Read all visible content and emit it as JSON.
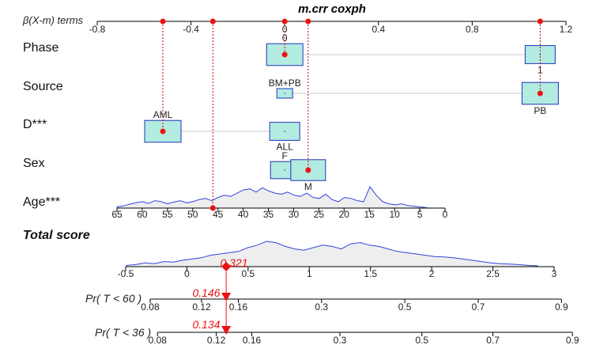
{
  "chart_data": {
    "type": "nomogram",
    "title": "m.crr coxph",
    "top_axis": {
      "label": "β(X-m) terms",
      "min": -0.8,
      "max": 1.2,
      "ticks": [
        -0.8,
        -0.4,
        0,
        0.4,
        0.8,
        1.2
      ],
      "tick_labels": [
        "-0.8",
        "-0.4",
        "0",
        "0.4",
        "0.8",
        "1.2"
      ]
    },
    "variables": [
      {
        "name": "Phase",
        "kind": "categorical",
        "categories": [
          {
            "label": "0",
            "beta": 0.0,
            "size": 0.23
          },
          {
            "label": "1",
            "beta": 1.09,
            "size": 0.19
          }
        ]
      },
      {
        "name": "Source",
        "kind": "categorical",
        "categories": [
          {
            "label": "BM+PB",
            "beta": 0.0,
            "size": 0.1
          },
          {
            "label": "PB",
            "beta": 1.09,
            "size": 0.23
          }
        ]
      },
      {
        "name": "D***",
        "kind": "categorical",
        "categories": [
          {
            "label": "AML",
            "beta": -0.52,
            "size": 0.23
          },
          {
            "label": "ALL",
            "beta": 0.0,
            "size": 0.19
          }
        ]
      },
      {
        "name": "Sex",
        "kind": "categorical",
        "categories": [
          {
            "label": "F",
            "beta": 0.0,
            "size": 0.18
          },
          {
            "label": "M",
            "beta": 0.1,
            "size": 0.22
          }
        ]
      },
      {
        "name": "Age***",
        "kind": "continuous",
        "axis_min_value": 65,
        "axis_max_value": 0,
        "ticks": [
          65,
          60,
          55,
          50,
          45,
          40,
          35,
          30,
          25,
          20,
          15,
          10,
          5,
          0
        ],
        "density": [
          0.05,
          0.1,
          0.18,
          0.25,
          0.3,
          0.22,
          0.35,
          0.3,
          0.2,
          0.28,
          0.35,
          0.25,
          0.3,
          0.4,
          0.45,
          0.35,
          0.5,
          0.6,
          0.55,
          0.7,
          0.85,
          0.9,
          0.75,
          0.95,
          0.8,
          0.7,
          0.65,
          0.75,
          0.6,
          0.55,
          0.7,
          0.5,
          0.45,
          0.65,
          0.4,
          0.3,
          0.5,
          0.45,
          0.35,
          0.3,
          1.0,
          0.6,
          0.3,
          0.2,
          0.15,
          0.2,
          0.12,
          0.08,
          0.05,
          0.02
        ]
      }
    ],
    "total_score": {
      "label": "Total score",
      "min": -0.5,
      "max": 3,
      "ticks": [
        -0.5,
        0,
        0.5,
        1,
        1.5,
        2,
        2.5,
        3
      ],
      "tick_labels": [
        "-0.5",
        "0",
        "0.5",
        "1",
        "1.5",
        "2",
        "2.5",
        "3"
      ],
      "density": [
        0.05,
        0.08,
        0.15,
        0.12,
        0.2,
        0.18,
        0.25,
        0.3,
        0.35,
        0.45,
        0.5,
        0.55,
        0.6,
        0.75,
        0.85,
        1.0,
        0.95,
        0.8,
        0.7,
        0.65,
        0.75,
        0.85,
        0.8,
        0.7,
        0.9,
        0.95,
        0.85,
        0.8,
        0.7,
        0.6,
        0.55,
        0.5,
        0.45,
        0.4,
        0.38,
        0.35,
        0.3,
        0.25,
        0.2,
        0.15,
        0.12,
        0.1,
        0.08,
        0.05,
        0.03
      ]
    },
    "probability_axes": [
      {
        "label": "Pr( T < 60 )",
        "ticks": [
          {
            "value": 0.08,
            "score": -0.3
          },
          {
            "value": 0.12,
            "score": 0.12
          },
          {
            "value": 0.16,
            "score": 0.42
          },
          {
            "value": 0.3,
            "score": 1.1
          },
          {
            "value": 0.5,
            "score": 1.78
          },
          {
            "value": 0.7,
            "score": 2.38
          },
          {
            "value": 0.9,
            "score": 3.06
          }
        ],
        "tick_labels": [
          "0.08",
          "0.12",
          "0.16",
          "0.3",
          "0.5",
          "0.7",
          "0.9"
        ]
      },
      {
        "label": "Pr( T < 36 )",
        "ticks": [
          {
            "value": 0.08,
            "score": -0.24
          },
          {
            "value": 0.12,
            "score": 0.24
          },
          {
            "value": 0.16,
            "score": 0.53
          },
          {
            "value": 0.3,
            "score": 1.25
          },
          {
            "value": 0.5,
            "score": 1.92
          },
          {
            "value": 0.7,
            "score": 2.5
          },
          {
            "value": 0.9,
            "score": 3.15
          }
        ],
        "tick_labels": [
          "0.08",
          "0.12",
          "0.16",
          "0.3",
          "0.5",
          "0.7",
          "0.9"
        ]
      }
    ],
    "highlighted_patient": {
      "phase_beta": 0.0,
      "source_beta": 1.09,
      "d_beta": -0.52,
      "sex_beta": 0.1,
      "age": 46,
      "total_score": "0.321",
      "total_score_value": 0.321,
      "pr60": "0.146",
      "pr60_value": 0.146,
      "pr36": "0.134",
      "pr36_value": 0.134
    },
    "colors": {
      "box_fill": "#b2ebe0",
      "box_stroke": "#2233bb",
      "density_stroke": "#3344dd",
      "density_fill": "#eeeeee",
      "marker": "#ee1111",
      "guide_line": "#cc0000",
      "axis": "#000000",
      "connector": "#c8c8c8"
    }
  }
}
